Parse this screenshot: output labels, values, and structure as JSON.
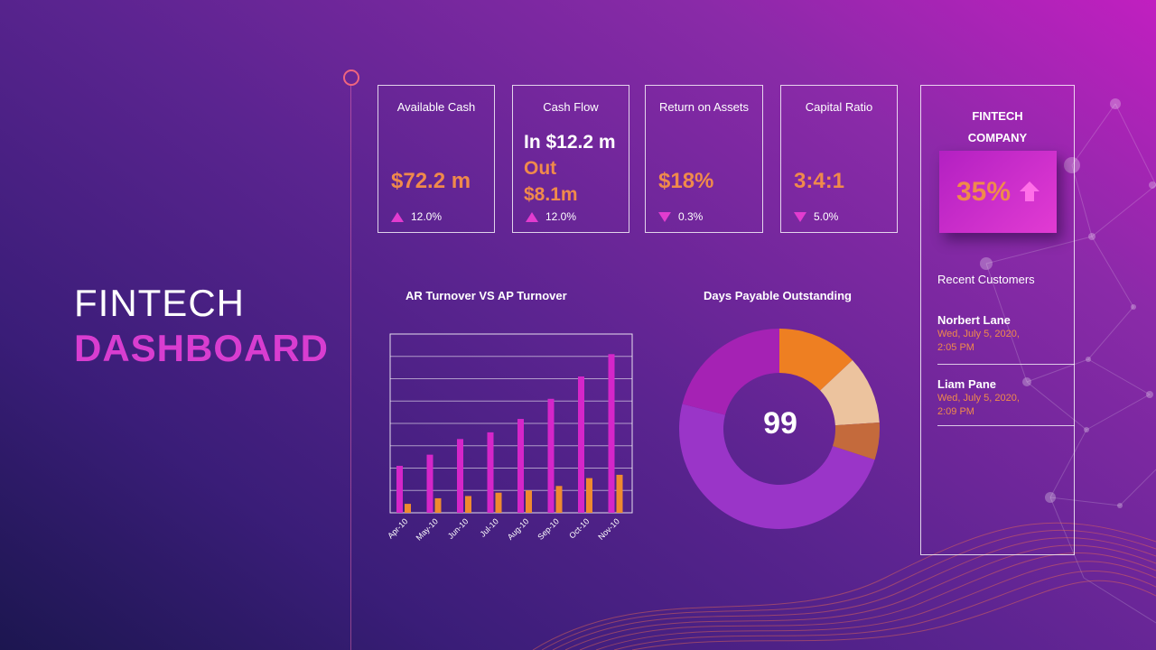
{
  "title": {
    "light": "FINTECH",
    "bold": "DASHBOARD"
  },
  "kpis": [
    {
      "label": "Available Cash",
      "value": "$72.2 m",
      "delta": "12.0%",
      "direction": "up"
    },
    {
      "label": "Cash Flow",
      "line_in": "In $12.2 m",
      "line_out_1": "Out",
      "line_out_2": "$8.1m",
      "delta": "12.0%",
      "direction": "up"
    },
    {
      "label": "Return on Assets",
      "value": "$18%",
      "delta": "0.3%",
      "direction": "down"
    },
    {
      "label": "Capital Ratio",
      "value": "3:4:1",
      "delta": "5.0%",
      "direction": "down"
    }
  ],
  "company": {
    "title_1": "FINTECH",
    "title_2": "COMPANY",
    "percent": "35%",
    "recent_label": "Recent Customers",
    "customers": [
      {
        "name": "Norbert Lane",
        "time_1": "Wed, July 5, 2020,",
        "time_2": "2:05 PM"
      },
      {
        "name": "Liam Pane",
        "time_1": "Wed, July 5, 2020,",
        "time_2": "2:09 PM"
      }
    ]
  },
  "colors": {
    "accent_pink": "#d83dd0",
    "accent_orange": "#f08a4b",
    "bar_pink": "#d526c9",
    "bar_orange": "#ef8a2f"
  },
  "chart_data": [
    {
      "type": "bar",
      "title": "AR Turnover VS AP Turnover",
      "categories": [
        "Apr-10",
        "May-10",
        "Jun-10",
        "Jul-10",
        "Aug-10",
        "Sep-10",
        "Oct-10",
        "Nov-10"
      ],
      "series": [
        {
          "name": "AR Turnover",
          "values": [
            2.1,
            2.6,
            3.3,
            3.6,
            4.2,
            5.1,
            6.1,
            7.1
          ]
        },
        {
          "name": "AP Turnover",
          "values": [
            0.4,
            0.65,
            0.75,
            0.9,
            1.0,
            1.2,
            1.55,
            1.7
          ]
        }
      ],
      "ylim": [
        0,
        8
      ],
      "grid": true
    },
    {
      "type": "pie",
      "title": "Days Payable Outstanding",
      "center_label": "99",
      "slices": [
        {
          "value": 13,
          "color": "#ee7f22"
        },
        {
          "value": 11,
          "color": "#ecc39e"
        },
        {
          "value": 6,
          "color": "#c46a3c"
        },
        {
          "value": 49,
          "color": "#9a35c8"
        },
        {
          "value": 21,
          "color": "#a522b4"
        }
      ]
    }
  ]
}
